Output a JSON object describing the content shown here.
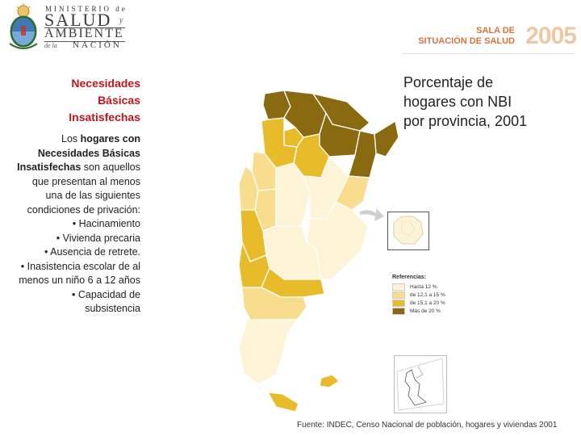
{
  "header": {
    "ministry_top": "MINISTERIO de",
    "ministry_salud": "SALUD",
    "ministry_y": "y",
    "ministry_ambiente": "AMBIENTE",
    "ministry_nacion_pre": "de la",
    "ministry_nacion": "NACIÓN",
    "sala_line1": "SALA DE",
    "sala_line2": "SITUACIÓN DE SALUD",
    "sala_year": "2005"
  },
  "left_panel": {
    "title_lines": [
      "Necesidades",
      "Básicas",
      "Insatisfechas"
    ],
    "intro_pre": "Los ",
    "intro_bold": "hogares con Necesidades Básicas Insatisfechas",
    "intro_post": " son aquellos que presentan al menos una de las siguientes condiciones de privación:",
    "conditions": [
      "• Hacinamiento",
      "• Vivienda precaria",
      "• Ausencia de retrete.",
      "• Inasistencia escolar de al menos un niño 6 a 12 años",
      "• Capacidad de subsistencia"
    ]
  },
  "map": {
    "title_lines": [
      "Porcentaje de",
      "hogares con NBI",
      "por provincia, 2001"
    ],
    "legend_title": "Referencias:",
    "legend": [
      {
        "label": "Hasta 12 %",
        "color": "#fdf3d6"
      },
      {
        "label": "de 12,1 a 15 %",
        "color": "#f8dd8f"
      },
      {
        "label": "de 15,1 a 20 %",
        "color": "#e8bb2a"
      },
      {
        "label": "Más de 20 %",
        "color": "#8a6a10"
      }
    ],
    "source": "Fuente: INDEC, Censo Nacional de población, hogares y viviendas 2001"
  }
}
